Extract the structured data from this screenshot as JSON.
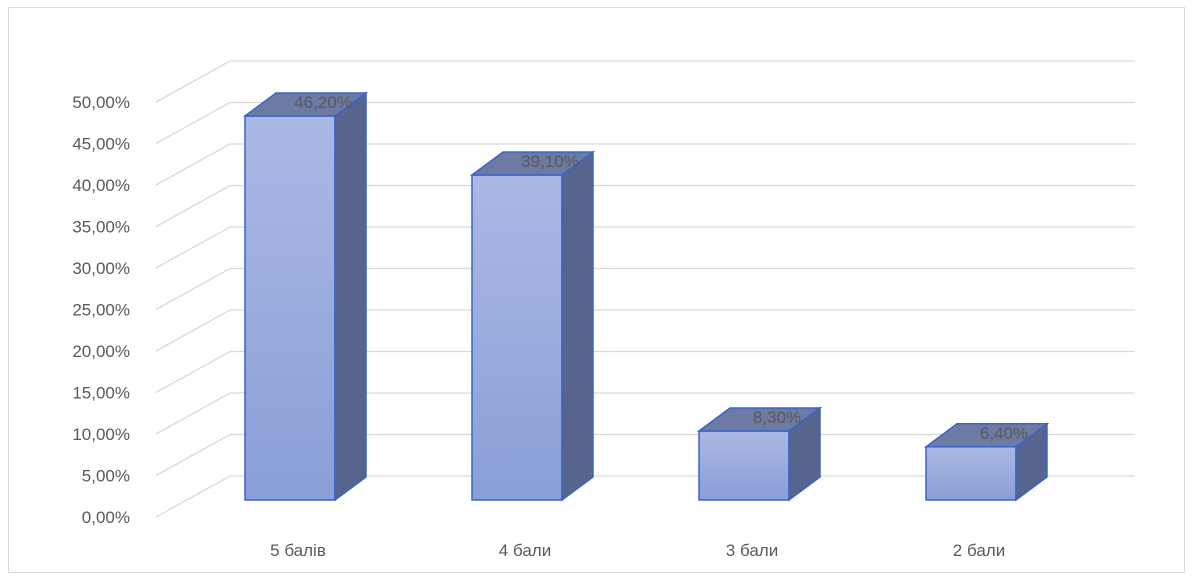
{
  "chart_data": {
    "type": "bar",
    "style": "3d-column",
    "categories": [
      "5 балів",
      "4 бали",
      "3 бали",
      "2 бали"
    ],
    "values": [
      46.2,
      39.1,
      8.3,
      6.4
    ],
    "data_labels": [
      "46,20%",
      "39,10%",
      "8,30%",
      "6,40%"
    ],
    "ylim": [
      0,
      50
    ],
    "y_ticks": [
      0,
      5,
      10,
      15,
      20,
      25,
      30,
      35,
      40,
      45,
      50
    ],
    "y_tick_labels": [
      "0,00%",
      "5,00%",
      "10,00%",
      "15,00%",
      "20,00%",
      "25,00%",
      "30,00%",
      "35,00%",
      "40,00%",
      "45,00%",
      "50,00%"
    ],
    "grid": true,
    "legend": "none",
    "colors": {
      "bar_front_top": "#aab8e4",
      "bar_front_bottom": "#8a9fd8",
      "bar_side": "#56648e",
      "bar_top": "#6d7aa3",
      "bar_edge": "#3b64c8",
      "grid": "#d9d9d9",
      "text": "#595959"
    }
  }
}
